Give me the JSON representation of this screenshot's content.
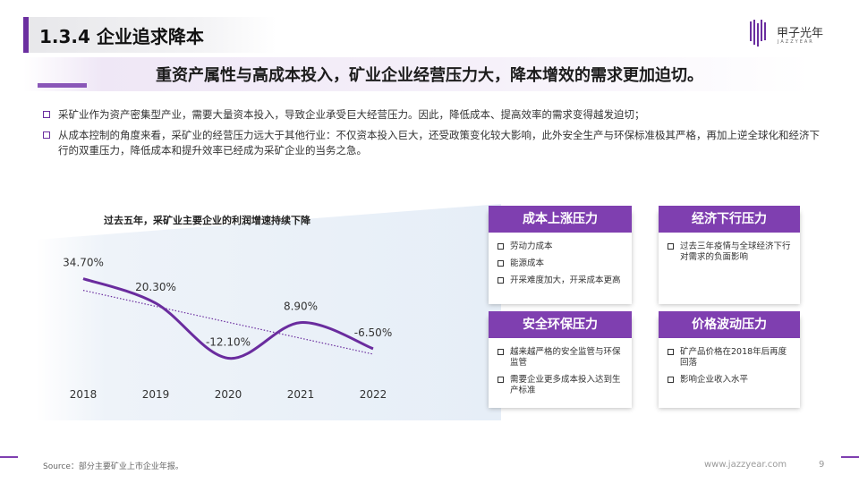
{
  "header": {
    "section_title": "1.3.4 企业追求降本",
    "logo_cn": "甲子光年",
    "logo_en": "JAZZYEAR"
  },
  "headline": "重资产属性与高成本投入，矿业企业经营压力大，降本增效的需求更加迫切。",
  "bullets": [
    "采矿业作为资产密集型产业，需要大量资本投入，导致企业承受巨大经营压力。因此，降低成本、提高效率的需求变得越发迫切；",
    "从成本控制的角度来看，采矿业的经营压力远大于其他行业：不仅资本投入巨大，还受政策变化较大影响，此外安全生产与环保标准极其严格，再加上逆全球化和经济下行的双重压力，降低成本和提升效率已经成为采矿企业的当务之急。"
  ],
  "chart_data": {
    "type": "line",
    "title": "过去五年，采矿业主要企业的利润增速持续下降",
    "categories": [
      "2018",
      "2019",
      "2020",
      "2021",
      "2022"
    ],
    "values": [
      34.7,
      20.3,
      -12.1,
      8.9,
      -6.5
    ],
    "value_labels": [
      "34.70%",
      "20.30%",
      "-12.10%",
      "8.90%",
      "-6.50%"
    ],
    "ylim": [
      -25,
      45
    ],
    "grid": false,
    "trendline": true,
    "series_color": "#6a2c9e"
  },
  "cards": [
    {
      "title": "成本上涨压力",
      "items": [
        "劳动力成本",
        "能源成本",
        "开采难度加大，开采成本更高"
      ]
    },
    {
      "title": "经济下行压力",
      "items": [
        "过去三年疫情与全球经济下行对需求的负面影响"
      ]
    },
    {
      "title": "安全环保压力",
      "items": [
        "越来越严格的安全监管与环保监管",
        "需要企业更多成本投入达到生产标准"
      ]
    },
    {
      "title": "价格波动压力",
      "items": [
        "矿产品价格在2018年后再度回落",
        "影响企业收入水平"
      ]
    }
  ],
  "footer": {
    "source": "Source：部分主要矿业上市企业年报。",
    "url": "www.jazzyear.com",
    "page": "9"
  },
  "colors": {
    "accent": "#7f3fb0",
    "dark_accent": "#6b2fa0"
  }
}
